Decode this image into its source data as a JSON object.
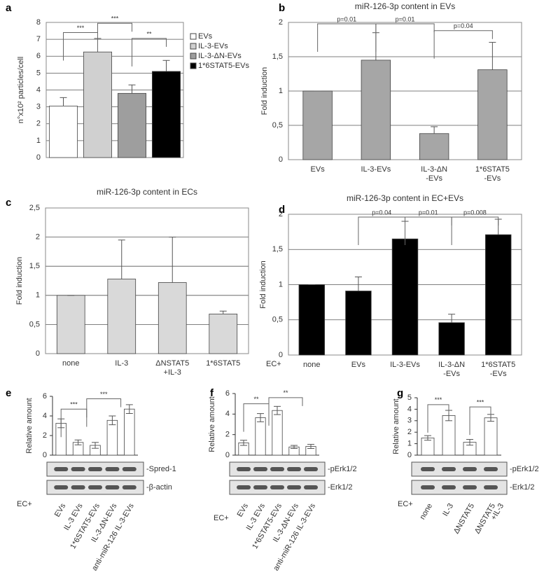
{
  "chart_data": [
    {
      "type": "bar",
      "label": "a",
      "ylabel": "n°x10² particles/cell",
      "categories": [
        null,
        null,
        null,
        null
      ],
      "values": [
        3.05,
        6.25,
        3.8,
        5.1
      ],
      "errors": [
        0.5,
        0.8,
        0.5,
        0.65
      ],
      "colors": [
        "#ffffff",
        "#d0d0d0",
        "#9e9e9e",
        "#000000"
      ],
      "legend": [
        "EVs",
        "IL-3-EVs",
        "IL-3-ΔN-EVs",
        "1*6STAT5-EVs"
      ],
      "ylim": [
        0,
        8
      ],
      "yticks": [
        0,
        1,
        2,
        3,
        4,
        5,
        6,
        7,
        8
      ],
      "grid": true,
      "annotations": [
        "***",
        "***",
        "**"
      ]
    },
    {
      "type": "bar",
      "label": "b",
      "title": "miR-126-3p content in EVs",
      "ylabel": "Fold induction",
      "categories": [
        "EVs",
        "IL-3-EVs",
        [
          "IL-3-ΔN",
          "-EVs"
        ],
        [
          "1*6STAT5",
          "-EVs"
        ]
      ],
      "values": [
        1,
        1.45,
        0.38,
        1.31
      ],
      "errors": [
        0,
        0.4,
        0.1,
        0.4
      ],
      "color": "#a6a6a6",
      "ylim": [
        0,
        2
      ],
      "yticks": [
        0,
        {
          "value": 0.5,
          "label": "0,5"
        },
        1,
        {
          "value": 1.5,
          "label": "1,5"
        },
        2
      ],
      "grid": true,
      "annotations": [
        "p=0.01",
        "p=0.01",
        "p=0.04"
      ]
    },
    {
      "type": "bar",
      "label": "c",
      "title": "miR-126-3p content in ECs",
      "ylabel": "Fold induction",
      "categories": [
        "none",
        "IL-3",
        [
          "ΔNSTAT5",
          "+IL-3"
        ],
        "1*6STAT5"
      ],
      "values": [
        1,
        1.28,
        1.22,
        0.68
      ],
      "errors": [
        0,
        0.67,
        0.78,
        0.05
      ],
      "color": "#d9d9d9",
      "ylim": [
        0,
        2.5
      ],
      "yticks": [
        0,
        {
          "value": 0.5,
          "label": "0,5"
        },
        1,
        {
          "value": 1.5,
          "label": "1,5"
        },
        2,
        {
          "value": 2.5,
          "label": "2,5"
        }
      ],
      "grid": true
    },
    {
      "type": "bar",
      "label": "d",
      "title": "miR-126-3p content in EC+EVs",
      "ylabel": "Fold induction",
      "ec_label": "EC+",
      "categories": [
        "none",
        "EVs",
        "IL-3-EVs",
        [
          "IL-3-ΔN",
          "-EVs"
        ],
        [
          "1*6STAT5",
          "-EVs"
        ]
      ],
      "values": [
        1,
        0.91,
        1.65,
        0.46,
        1.71
      ],
      "errors": [
        0,
        0.2,
        0.25,
        0.12,
        0.22
      ],
      "color": "#000000",
      "ylim": [
        0,
        2
      ],
      "yticks": [
        0,
        {
          "value": 0.5,
          "label": "0,5"
        },
        1,
        {
          "value": 1.5,
          "label": "1,5"
        },
        2
      ],
      "grid": true,
      "annotations": [
        "p=0.04",
        "p=0.01",
        "p=0.008"
      ]
    },
    {
      "type": "bar",
      "label": "e",
      "ylabel": "Relative amount",
      "ec_label": "EC+",
      "categories": [
        "EVs",
        "IL-3 EVs",
        "1*6STAT5-EVs",
        "IL-3-ΔN-EVs",
        "anti-miR-126 IL-3-EVs"
      ],
      "values": [
        3.25,
        1.3,
        1.0,
        3.55,
        4.7
      ],
      "errors": [
        0.45,
        0.25,
        0.3,
        0.45,
        0.45
      ],
      "color": "#ffffff",
      "ylim": [
        0,
        6
      ],
      "yticks": [
        0,
        2,
        4,
        6
      ],
      "grid": false,
      "annotations": [
        "***",
        "***"
      ],
      "blot_labels": [
        "-Spred-1",
        "-β-actin"
      ]
    },
    {
      "type": "bar",
      "label": "f",
      "ylabel": "Relative amount",
      "ec_label": "EC+",
      "categories": [
        "EVs",
        "IL-3 EVs",
        "1*6STAT5-EVs",
        "IL-3-ΔN-EVs",
        "anti-miR-126 IL-3-EVs"
      ],
      "values": [
        1.2,
        3.65,
        4.35,
        0.8,
        0.85
      ],
      "errors": [
        0.25,
        0.4,
        0.4,
        0.15,
        0.2
      ],
      "color": "#ffffff",
      "ylim": [
        0,
        6
      ],
      "yticks": [
        0,
        2,
        4,
        6
      ],
      "grid": false,
      "annotations": [
        "**",
        "**"
      ],
      "blot_labels": [
        "-pErk1/2",
        "-Erk1/2"
      ]
    },
    {
      "type": "bar",
      "label": "g",
      "ylabel": "Relative amount",
      "ec_label": "EC+",
      "categories": [
        "none",
        "IL-3",
        "ΔNSTAT5",
        [
          "ΔNSTAT5",
          "+IL-3"
        ]
      ],
      "values": [
        1.5,
        3.45,
        1.12,
        3.25
      ],
      "errors": [
        0.2,
        0.45,
        0.25,
        0.3
      ],
      "color": "#ffffff",
      "ylim": [
        0,
        5
      ],
      "yticks": [
        0,
        1,
        2,
        3,
        4,
        5
      ],
      "grid": false,
      "annotations": [
        "***",
        "***"
      ],
      "blot_labels": [
        "-pErk1/2",
        "-Erk1/2"
      ]
    }
  ]
}
